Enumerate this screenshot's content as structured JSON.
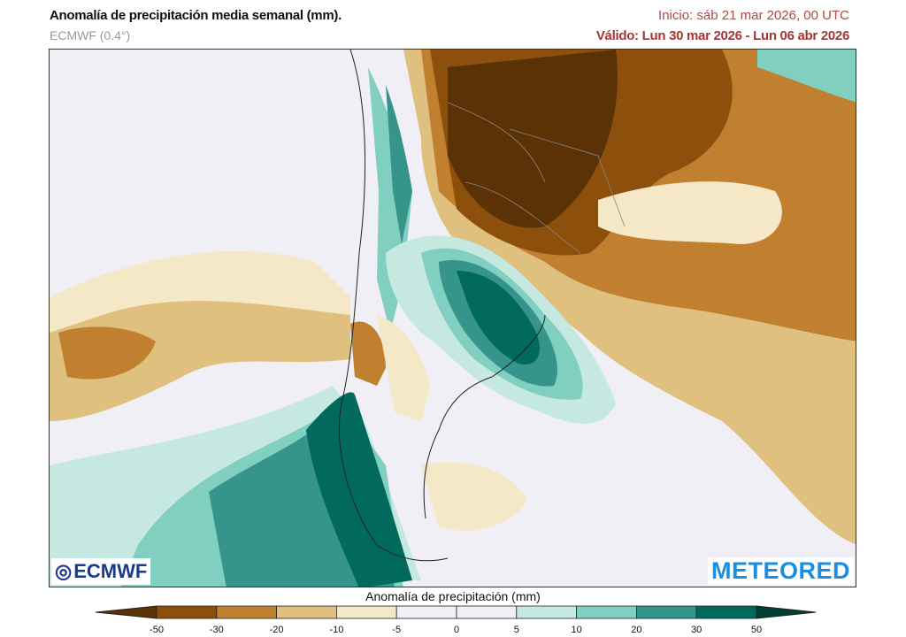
{
  "header": {
    "title": "Anomalía de precipitación media semanal (mm).",
    "model": "ECMWF (0.4°)",
    "init": "Inicio:  sáb 21 mar 2026, 00 UTC",
    "valid": "Válido: Lun 30 mar 2026 - Lun 06 abr 2026"
  },
  "logos": {
    "left": "ECMWF",
    "right": "METEORED"
  },
  "colorbar": {
    "title": "Anomalía de precipitación (mm)",
    "ticks": [
      "-50",
      "-30",
      "-20",
      "-10",
      "-5",
      "0",
      "5",
      "10",
      "20",
      "30",
      "50"
    ],
    "colors": [
      "#5a3206",
      "#8c4f0c",
      "#c0802f",
      "#dfc07f",
      "#f5e8c6",
      "#efeff5",
      "#efeff5",
      "#c5e9e0",
      "#80cfc0",
      "#35958a",
      "#016a5d",
      "#013f33"
    ]
  }
}
